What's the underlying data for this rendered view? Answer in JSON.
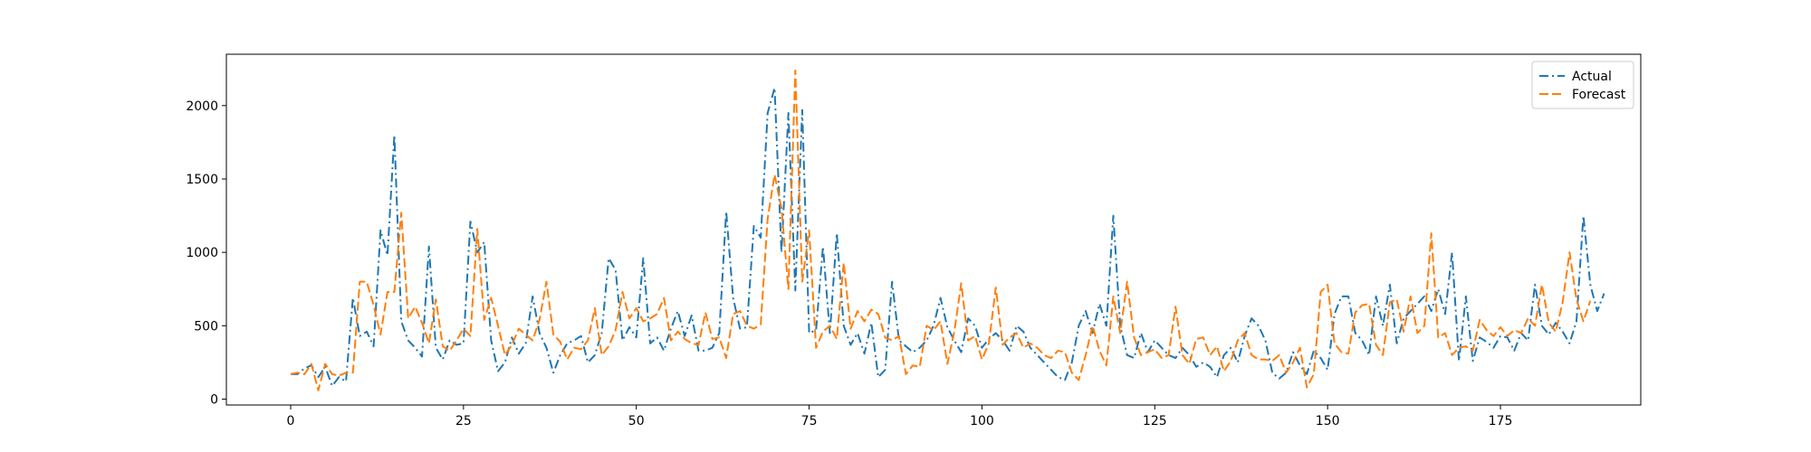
{
  "chart_data": {
    "type": "line",
    "title": "",
    "xlabel": "",
    "ylabel": "",
    "xlim": [
      -9.3,
      195.3
    ],
    "ylim": [
      -40,
      2350
    ],
    "xticks": [
      0,
      25,
      50,
      75,
      100,
      125,
      150,
      175
    ],
    "yticks": [
      0,
      500,
      1000,
      1500,
      2000
    ],
    "grid": false,
    "legend": "top-right",
    "series": [
      {
        "name": "Actual",
        "color": "#1f77b4",
        "dash": "dashdot",
        "values": [
          170,
          170,
          210,
          230,
          150,
          220,
          90,
          150,
          120,
          690,
          430,
          460,
          360,
          1150,
          980,
          1800,
          530,
          400,
          350,
          290,
          1040,
          350,
          270,
          400,
          370,
          380,
          1210,
          1000,
          1070,
          400,
          190,
          250,
          420,
          310,
          380,
          700,
          450,
          350,
          180,
          300,
          380,
          400,
          430,
          250,
          300,
          450,
          960,
          880,
          400,
          490,
          420,
          960,
          380,
          420,
          330,
          480,
          600,
          430,
          570,
          330,
          330,
          350,
          450,
          1280,
          690,
          480,
          490,
          1180,
          1100,
          1950,
          2120,
          1000,
          1950,
          740,
          1970,
          450,
          470,
          1040,
          450,
          1130,
          500,
          370,
          450,
          310,
          520,
          150,
          200,
          800,
          400,
          360,
          320,
          350,
          400,
          500,
          690,
          490,
          400,
          320,
          550,
          500,
          350,
          410,
          450,
          400,
          330,
          500,
          460,
          350,
          300,
          250,
          200,
          150,
          130,
          250,
          500,
          600,
          450,
          650,
          500,
          1250,
          500,
          300,
          280,
          450,
          320,
          400,
          350,
          300,
          280,
          350,
          300,
          220,
          250,
          220,
          150,
          300,
          350,
          250,
          430,
          550,
          500,
          400,
          180,
          140,
          180,
          320,
          230,
          170,
          330,
          280,
          200,
          580,
          700,
          700,
          450,
          400,
          300,
          700,
          500,
          780,
          380,
          550,
          600,
          650,
          700,
          600,
          750,
          580,
          1000,
          260,
          700,
          260,
          420,
          390,
          350,
          430,
          420,
          330,
          450,
          400,
          780,
          500,
          440,
          520,
          460,
          380,
          530,
          1250,
          780,
          600,
          720
        ]
      },
      {
        "name": "Forecast",
        "color": "#ff7f0e",
        "dash": "dashed",
        "values": [
          170,
          180,
          170,
          240,
          60,
          240,
          170,
          160,
          180,
          180,
          800,
          800,
          640,
          440,
          730,
          730,
          1270,
          550,
          630,
          520,
          380,
          680,
          360,
          330,
          400,
          480,
          430,
          1160,
          540,
          690,
          500,
          300,
          370,
          480,
          440,
          400,
          540,
          800,
          440,
          390,
          270,
          350,
          340,
          400,
          620,
          300,
          360,
          470,
          730,
          550,
          620,
          530,
          550,
          580,
          690,
          400,
          460,
          410,
          380,
          370,
          590,
          410,
          420,
          280,
          580,
          600,
          500,
          480,
          510,
          1230,
          1530,
          1300,
          750,
          2240,
          800,
          1150,
          350,
          460,
          500,
          410,
          930,
          480,
          600,
          530,
          610,
          580,
          420,
          400,
          430,
          170,
          230,
          220,
          500,
          470,
          530,
          240,
          460,
          790,
          400,
          430,
          270,
          380,
          760,
          370,
          420,
          450,
          350,
          380,
          350,
          300,
          280,
          330,
          320,
          180,
          130,
          300,
          500,
          330,
          230,
          700,
          450,
          800,
          420,
          300,
          320,
          340,
          280,
          300,
          630,
          300,
          240,
          410,
          420,
          300,
          360,
          190,
          260,
          400,
          450,
          300,
          270,
          270,
          260,
          300,
          180,
          250,
          350,
          80,
          170,
          730,
          780,
          380,
          320,
          310,
          590,
          640,
          650,
          370,
          300,
          660,
          680,
          460,
          700,
          450,
          500,
          1130,
          420,
          450,
          300,
          350,
          360,
          330,
          540,
          470,
          430,
          490,
          430,
          470,
          450,
          550,
          500,
          780,
          520,
          460,
          660,
          1000,
          680,
          530,
          670
        ]
      }
    ]
  }
}
